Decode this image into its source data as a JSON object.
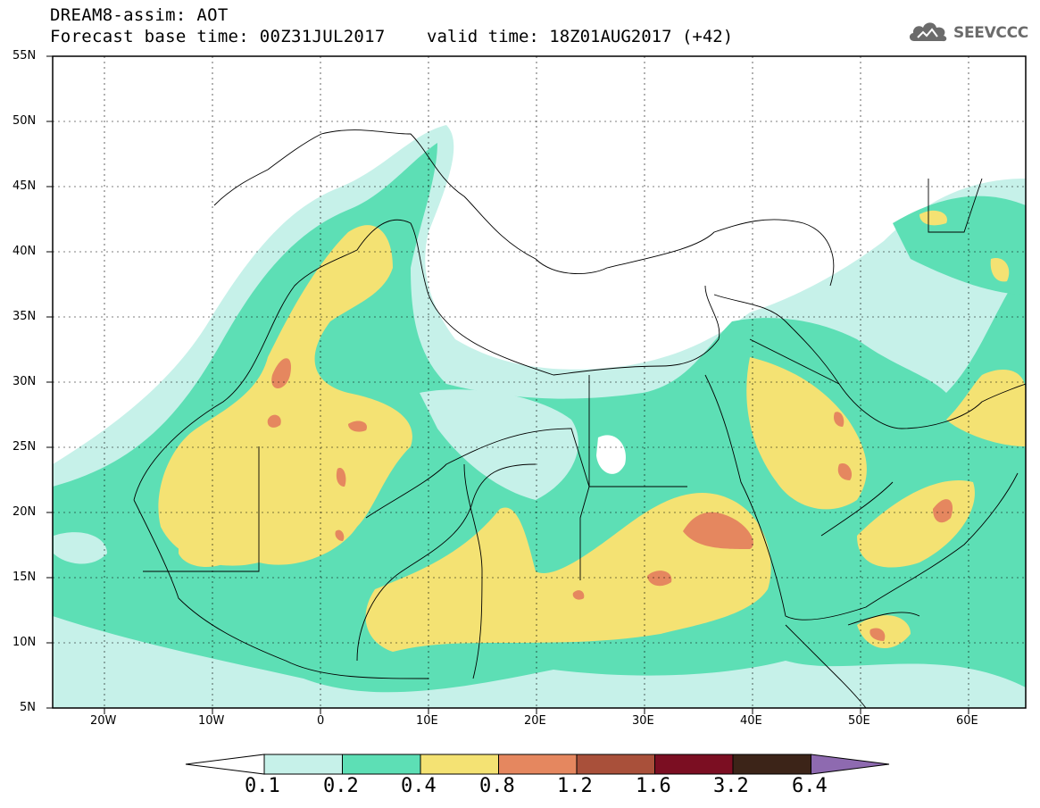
{
  "header": {
    "title": "DREAM8-assim: AOT",
    "base_time": "Forecast base time: 00Z31JUL2017",
    "valid_time": "valid time: 18Z01AUG2017 (+42)"
  },
  "logo": {
    "text": "SEEVCCC",
    "icon": "cloud-icon"
  },
  "map": {
    "lon_range": [
      -25,
      65
    ],
    "lat_range": [
      5,
      55
    ],
    "lat_ticks": [
      "55N",
      "50N",
      "45N",
      "40N",
      "35N",
      "30N",
      "25N",
      "20N",
      "15N",
      "10N",
      "5N"
    ],
    "lon_ticks": [
      "20W",
      "10W",
      "0",
      "10E",
      "20E",
      "30E",
      "40E",
      "50E",
      "60E"
    ],
    "grid": true
  },
  "colorbar": {
    "levels": [
      "0.1",
      "0.2",
      "0.4",
      "0.8",
      "1.2",
      "1.6",
      "3.2",
      "6.4"
    ],
    "colors": [
      "#ffffff",
      "#c6f1e9",
      "#5ddfb5",
      "#f4e273",
      "#e5875f",
      "#a9503a",
      "#7b0e22",
      "#3c2418",
      "#8e6ab0"
    ]
  },
  "palette": {
    "light_teal": "#c6f1e9",
    "teal": "#5ddfb5",
    "yellow": "#f4e273",
    "salmon": "#e5875f"
  }
}
